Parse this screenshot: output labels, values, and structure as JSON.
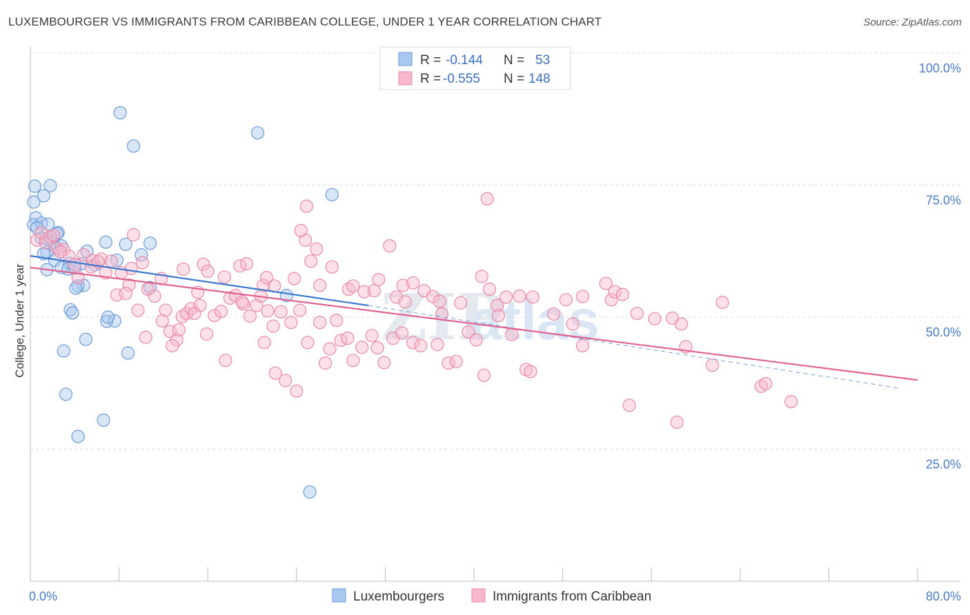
{
  "title": "LUXEMBOURGER VS IMMIGRANTS FROM CARIBBEAN COLLEGE, UNDER 1 YEAR CORRELATION CHART",
  "source": "Source: ZipAtlas.com",
  "watermark": {
    "zip": "ZIP",
    "atlas": "atlas"
  },
  "legend": {
    "rows": [
      {
        "r_label": "R =",
        "r_value": "-0.144",
        "n_label": "N =",
        "n_value": "53",
        "color": "#a8c8f0",
        "stroke": "#6b9bd8"
      },
      {
        "r_label": "R =",
        "r_value": "-0.555",
        "n_label": "N =",
        "n_value": "148",
        "color": "#f8b8cc",
        "stroke": "#e88aa8"
      }
    ]
  },
  "bottom_legend": [
    {
      "label": "Luxembourgers",
      "color": "#a8c8f0",
      "stroke": "#6b9bd8"
    },
    {
      "label": "Immigrants from Caribbean",
      "color": "#f8b8cc",
      "stroke": "#e88aa8"
    }
  ],
  "chart_data": {
    "type": "scatter",
    "xlabel": "",
    "ylabel": "College, Under 1 year",
    "xlim": [
      0,
      80
    ],
    "ylim": [
      0,
      103
    ],
    "x_tick_labels": [
      {
        "value": 0,
        "label": "0.0%"
      },
      {
        "value": 80,
        "label": "80.0%"
      }
    ],
    "y_tick_labels": [
      {
        "value": 25,
        "label": "25.0%"
      },
      {
        "value": 50,
        "label": "50.0%"
      },
      {
        "value": 75,
        "label": "75.0%"
      },
      {
        "value": 100,
        "label": "100.0%"
      }
    ],
    "x_minor_ticks": [
      0,
      8,
      16,
      24,
      32,
      40,
      48,
      56,
      64,
      72,
      80
    ],
    "grid": true,
    "series": [
      {
        "name": "Luxembourgers",
        "color": "#a8c8f0",
        "stroke": "#6b9bd8",
        "trend": {
          "x": [
            0,
            30.5
          ],
          "y": [
            61.6,
            52.2
          ],
          "color": "#3a78d0"
        },
        "trend_ext": {
          "x": [
            30.5,
            78.5
          ],
          "y": [
            52.2,
            36.5
          ]
        },
        "points": [
          [
            0.4,
            74.8
          ],
          [
            1.8,
            74.9
          ],
          [
            1.2,
            73.0
          ],
          [
            0.3,
            71.8
          ],
          [
            8.1,
            88.7
          ],
          [
            9.3,
            82.4
          ],
          [
            20.5,
            84.9
          ],
          [
            27.2,
            73.2
          ],
          [
            0.5,
            68.8
          ],
          [
            0.3,
            67.5
          ],
          [
            1.0,
            67.8
          ],
          [
            1.6,
            67.6
          ],
          [
            0.6,
            66.9
          ],
          [
            2.5,
            66.0
          ],
          [
            2.4,
            65.8
          ],
          [
            1.0,
            65.0
          ],
          [
            1.4,
            64.8
          ],
          [
            2.0,
            64.2
          ],
          [
            2.2,
            63.4
          ],
          [
            2.8,
            63.5
          ],
          [
            6.8,
            64.2
          ],
          [
            8.6,
            63.8
          ],
          [
            10.8,
            64.0
          ],
          [
            1.5,
            62.3
          ],
          [
            5.1,
            62.5
          ],
          [
            10.0,
            61.8
          ],
          [
            2.2,
            60.8
          ],
          [
            3.5,
            60.2
          ],
          [
            4.6,
            60.1
          ],
          [
            5.8,
            59.9
          ],
          [
            7.8,
            60.8
          ],
          [
            1.5,
            59.0
          ],
          [
            2.8,
            59.4
          ],
          [
            3.4,
            59.1
          ],
          [
            4.0,
            59.3
          ],
          [
            4.8,
            56.0
          ],
          [
            4.3,
            55.9
          ],
          [
            4.1,
            55.5
          ],
          [
            10.8,
            55.6
          ],
          [
            23.1,
            54.1
          ],
          [
            3.6,
            51.4
          ],
          [
            3.8,
            50.8
          ],
          [
            6.9,
            49.2
          ],
          [
            7.6,
            49.3
          ],
          [
            5.0,
            45.8
          ],
          [
            3.0,
            43.6
          ],
          [
            8.8,
            43.2
          ],
          [
            3.2,
            35.4
          ],
          [
            6.6,
            30.5
          ],
          [
            4.3,
            27.4
          ],
          [
            25.2,
            16.9
          ],
          [
            7.0,
            50.0
          ],
          [
            1.2,
            62.0
          ]
        ]
      },
      {
        "name": "Immigrants from Caribbean",
        "color": "#f8b8cc",
        "stroke": "#e88aa8",
        "trend": {
          "x": [
            0,
            80
          ],
          "y": [
            59.4,
            38.1
          ],
          "color": "#e06090"
        },
        "points": [
          [
            0.6,
            64.6
          ],
          [
            1.0,
            66.0
          ],
          [
            1.8,
            65.2
          ],
          [
            2.4,
            63.0
          ],
          [
            3.0,
            62.8
          ],
          [
            3.5,
            61.5
          ],
          [
            4.8,
            61.8
          ],
          [
            5.6,
            60.7
          ],
          [
            6.4,
            61.0
          ],
          [
            7.3,
            60.6
          ],
          [
            8.2,
            58.4
          ],
          [
            9.1,
            59.2
          ],
          [
            10.1,
            60.3
          ],
          [
            11.8,
            57.3
          ],
          [
            13.8,
            59.1
          ],
          [
            15.6,
            60.0
          ],
          [
            17.5,
            57.6
          ],
          [
            18.9,
            59.7
          ],
          [
            19.5,
            60.1
          ],
          [
            21.0,
            56.0
          ],
          [
            21.3,
            57.5
          ],
          [
            22.0,
            55.9
          ],
          [
            23.8,
            57.3
          ],
          [
            24.8,
            64.6
          ],
          [
            24.4,
            66.4
          ],
          [
            25.3,
            60.6
          ],
          [
            25.8,
            62.9
          ],
          [
            24.9,
            71.0
          ],
          [
            27.2,
            59.5
          ],
          [
            28.7,
            55.3
          ],
          [
            29.1,
            55.9
          ],
          [
            30.1,
            54.8
          ],
          [
            31.4,
            57.1
          ],
          [
            32.4,
            63.5
          ],
          [
            33.0,
            53.8
          ],
          [
            33.6,
            56.0
          ],
          [
            34.5,
            56.5
          ],
          [
            35.5,
            55.0
          ],
          [
            36.3,
            53.9
          ],
          [
            36.9,
            53.0
          ],
          [
            37.1,
            50.6
          ],
          [
            38.8,
            52.7
          ],
          [
            40.7,
            57.7
          ],
          [
            41.4,
            55.3
          ],
          [
            42.1,
            52.2
          ],
          [
            42.9,
            53.8
          ],
          [
            44.1,
            54.0
          ],
          [
            45.3,
            53.8
          ],
          [
            47.2,
            50.6
          ],
          [
            48.3,
            53.3
          ],
          [
            49.8,
            53.9
          ],
          [
            51.9,
            56.4
          ],
          [
            52.4,
            53.3
          ],
          [
            52.7,
            54.8
          ],
          [
            53.4,
            54.3
          ],
          [
            54.7,
            50.7
          ],
          [
            56.3,
            49.7
          ],
          [
            57.9,
            49.8
          ],
          [
            58.7,
            48.7
          ],
          [
            62.4,
            52.8
          ],
          [
            41.2,
            72.4
          ],
          [
            59.1,
            44.4
          ],
          [
            58.3,
            30.1
          ],
          [
            54.0,
            33.3
          ],
          [
            61.5,
            40.9
          ],
          [
            65.9,
            36.9
          ],
          [
            66.3,
            37.4
          ],
          [
            68.6,
            34.0
          ],
          [
            1.4,
            64.1
          ],
          [
            2.1,
            65.5
          ],
          [
            2.7,
            62.4
          ],
          [
            4.0,
            60.0
          ],
          [
            4.3,
            57.5
          ],
          [
            5.5,
            59.5
          ],
          [
            6.8,
            58.4
          ],
          [
            7.8,
            54.2
          ],
          [
            8.9,
            56.1
          ],
          [
            9.7,
            51.3
          ],
          [
            10.6,
            55.3
          ],
          [
            11.2,
            54.0
          ],
          [
            12.2,
            51.3
          ],
          [
            12.6,
            47.3
          ],
          [
            13.2,
            45.7
          ],
          [
            13.7,
            50.1
          ],
          [
            14.1,
            50.7
          ],
          [
            14.5,
            51.6
          ],
          [
            15.3,
            52.2
          ],
          [
            15.9,
            46.8
          ],
          [
            16.6,
            50.3
          ],
          [
            17.2,
            51.1
          ],
          [
            18.0,
            53.6
          ],
          [
            18.5,
            54.1
          ],
          [
            19.2,
            52.5
          ],
          [
            19.8,
            50.2
          ],
          [
            20.4,
            52.2
          ],
          [
            21.4,
            51.2
          ],
          [
            21.9,
            48.3
          ],
          [
            22.6,
            51.0
          ],
          [
            23.5,
            49.0
          ],
          [
            24.3,
            51.3
          ],
          [
            25.0,
            45.2
          ],
          [
            26.1,
            49.0
          ],
          [
            26.6,
            41.3
          ],
          [
            27.0,
            44.0
          ],
          [
            27.6,
            49.4
          ],
          [
            28.0,
            45.6
          ],
          [
            28.6,
            46.0
          ],
          [
            29.1,
            41.8
          ],
          [
            29.9,
            44.3
          ],
          [
            30.8,
            46.5
          ],
          [
            31.3,
            44.2
          ],
          [
            31.9,
            41.4
          ],
          [
            32.7,
            46.0
          ],
          [
            33.5,
            47.0
          ],
          [
            34.5,
            45.2
          ],
          [
            35.2,
            44.6
          ],
          [
            36.7,
            44.8
          ],
          [
            37.7,
            41.3
          ],
          [
            38.4,
            41.6
          ],
          [
            39.5,
            47.2
          ],
          [
            40.2,
            45.7
          ],
          [
            40.9,
            39.0
          ],
          [
            42.2,
            50.3
          ],
          [
            43.4,
            46.7
          ],
          [
            44.7,
            40.1
          ],
          [
            45.1,
            39.7
          ],
          [
            48.9,
            48.7
          ],
          [
            49.8,
            44.6
          ],
          [
            11.9,
            49.3
          ],
          [
            14.8,
            50.7
          ],
          [
            17.6,
            41.8
          ],
          [
            19.1,
            52.9
          ],
          [
            21.1,
            45.2
          ],
          [
            22.1,
            39.4
          ],
          [
            23.0,
            38.0
          ],
          [
            24.0,
            36.0
          ],
          [
            12.8,
            44.6
          ],
          [
            16.0,
            58.7
          ],
          [
            9.3,
            65.6
          ],
          [
            6.1,
            60.5
          ],
          [
            8.6,
            54.5
          ],
          [
            26.1,
            56.0
          ],
          [
            15.1,
            54.7
          ],
          [
            10.4,
            46.2
          ],
          [
            31.0,
            55.0
          ],
          [
            33.8,
            52.9
          ],
          [
            13.4,
            47.6
          ],
          [
            20.8,
            54.0
          ]
        ]
      }
    ]
  }
}
